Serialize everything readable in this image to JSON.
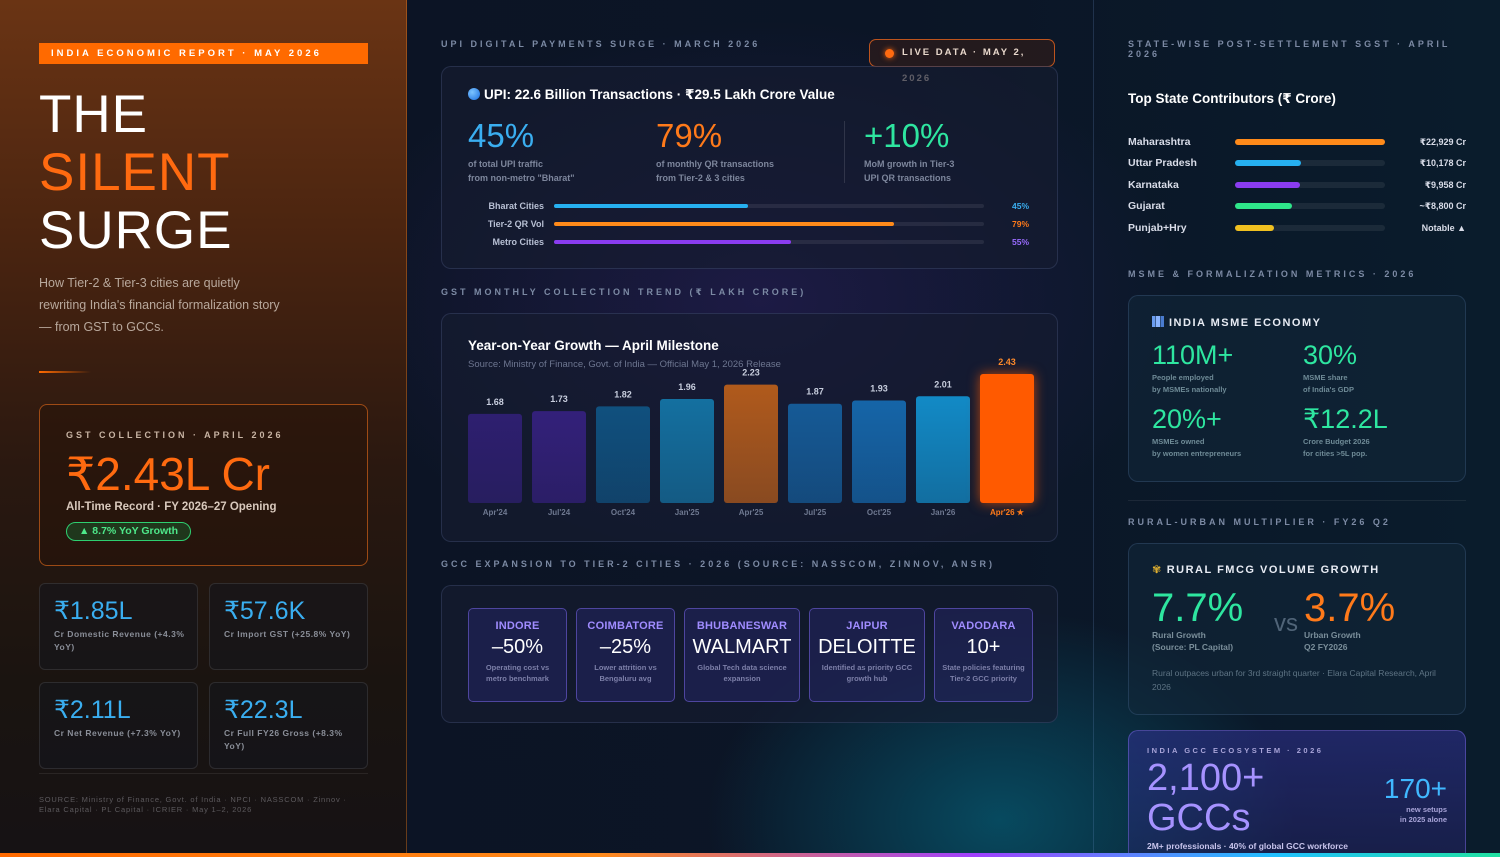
{
  "left": {
    "report_tag": "INDIA ECONOMIC REPORT · MAY 2026",
    "title": [
      "THE",
      "SILENT",
      "SURGE"
    ],
    "subtitle": "How Tier-2 & Tier-3 cities are quietly rewriting India's financial formalization story — from GST to GCCs.",
    "gst_card": {
      "label": "GST COLLECTION · APRIL 2026",
      "value": "₹2.43L Cr",
      "sub": "All-Time Record · FY 2026–27 Opening",
      "pill": "▲ 8.7% YoY Growth"
    },
    "stats": [
      {
        "value": "₹1.85L",
        "desc": "Cr Domestic Revenue (+4.3% YoY)"
      },
      {
        "value": "₹57.6K",
        "desc": "Cr Import GST (+25.8% YoY)"
      },
      {
        "value": "₹2.11L",
        "desc": "Cr Net Revenue (+7.3% YoY)"
      },
      {
        "value": "₹22.3L",
        "desc": "Cr Full FY26 Gross (+8.3% YoY)"
      }
    ],
    "source": "SOURCE: Ministry of Finance, Govt. of India · NPCI · NASSCOM · Zinnov · Elara Capital · PL Capital · ICRIER · May 1–2, 2026"
  },
  "upi": {
    "section_label": "UPI DIGITAL PAYMENTS SURGE · MARCH 2026",
    "live_badge": "LIVE DATA · MAY 2, 2026",
    "title": "UPI: 22.6 Billion Transactions · ₹29.5 Lakh Crore Value",
    "kpis": [
      {
        "value": "45%",
        "desc1": "of total UPI traffic",
        "desc2": "from non-metro \"Bharat\"",
        "color": "#3aaef0"
      },
      {
        "value": "79%",
        "desc1": "of monthly QR transactions",
        "desc2": "from Tier-2 & 3 cities",
        "color": "#ff7a1a"
      },
      {
        "value": "+10%",
        "desc1": "MoM growth in Tier-3",
        "desc2": "UPI QR transactions",
        "color": "#2ee6a0"
      }
    ],
    "bars": [
      {
        "label": "Bharat Cities",
        "pct": "45%",
        "value": 45,
        "color": "#26b0f0",
        "pct_color": "#3aaef0"
      },
      {
        "label": "Tier-2 QR Vol",
        "pct": "79%",
        "value": 79,
        "color": "#ff8a1a",
        "pct_color": "#ff7a1a"
      },
      {
        "label": "Metro Cities",
        "pct": "55%",
        "value": 55,
        "color": "#8a3cf0",
        "pct_color": "#9a6cff"
      }
    ]
  },
  "gst_trend": {
    "section_label": "GST MONTHLY COLLECTION TREND (₹ LAKH CRORE)",
    "title": "Year-on-Year Growth — April Milestone",
    "source": "Source: Ministry of Finance, Govt. of India — Official May 1, 2026 Release"
  },
  "chart_data": {
    "type": "bar",
    "title": "Year-on-Year Growth — April Milestone",
    "categories": [
      "Apr'24",
      "Jul'24",
      "Oct'24",
      "Jan'25",
      "Apr'25",
      "Jul'25",
      "Oct'25",
      "Jan'26",
      "Apr'26 ★"
    ],
    "values": [
      1.68,
      1.73,
      1.82,
      1.96,
      2.23,
      1.87,
      1.93,
      2.01,
      2.43
    ],
    "value_labels": [
      "1.68",
      "1.73",
      "1.82",
      "1.96",
      "2.23",
      "1.87",
      "1.93",
      "2.01",
      "2.43"
    ],
    "colors": [
      "#2e1f70",
      "#33207a",
      "#10507e",
      "#1470a0",
      "#b05a1c",
      "#155a96",
      "#1565a8",
      "#128ac6",
      "#ff5a00"
    ],
    "highlight_index": 8,
    "ylim": [
      0,
      2.43
    ],
    "grid": false,
    "legend": "none"
  },
  "gcc": {
    "section_label": "GCC EXPANSION TO TIER-2 CITIES · 2026 (SOURCE: NASSCOM, ZINNOV, ANSR)",
    "cards": [
      {
        "city": "INDORE",
        "value": "–50%",
        "desc": "Operating cost vs metro benchmark"
      },
      {
        "city": "COIMBATORE",
        "value": "–25%",
        "desc": "Lower attrition vs Bengaluru avg"
      },
      {
        "city": "BHUBANESWAR",
        "value": "WALMART",
        "desc": "Global Tech data science expansion"
      },
      {
        "city": "JAIPUR",
        "value": "DELOITTE",
        "desc": "Identified as priority GCC growth hub"
      },
      {
        "city": "VADODARA",
        "value": "10+",
        "desc": "State policies featuring Tier-2 GCC priority"
      }
    ]
  },
  "right": {
    "state_label": "STATE-WISE POST-SETTLEMENT SGST · APRIL 2026",
    "state_title": "Top State Contributors (₹ Crore)",
    "states": [
      {
        "name": "Maharashtra",
        "value": "₹22,929 Cr",
        "fill": 1.0,
        "color": "#ff8a1a"
      },
      {
        "name": "Uttar Pradesh",
        "value": "₹10,178 Cr",
        "fill": 0.44,
        "color": "#26b0f0"
      },
      {
        "name": "Karnataka",
        "value": "₹9,958 Cr",
        "fill": 0.43,
        "color": "#8a3cf0"
      },
      {
        "name": "Gujarat",
        "value": "~₹8,800 Cr",
        "fill": 0.38,
        "color": "#2ee68a"
      },
      {
        "name": "Punjab+Hry",
        "value": "Notable ▲",
        "fill": 0.26,
        "color": "#f0c020"
      }
    ],
    "msme_label": "MSME & FORMALIZATION METRICS · 2026",
    "msme": {
      "head": "INDIA MSME ECONOMY",
      "kpis": [
        {
          "value": "110M+",
          "desc1": "People employed",
          "desc2": "by MSMEs nationally"
        },
        {
          "value": "30%",
          "desc1": "MSME share",
          "desc2": "of India's GDP"
        },
        {
          "value": "20%+",
          "desc1": "MSMEs owned",
          "desc2": "by women entrepreneurs"
        },
        {
          "value": "₹12.2L",
          "desc1": "Crore Budget 2026",
          "desc2": "for cities >5L pop."
        }
      ]
    },
    "rural_label": "RURAL-URBAN MULTIPLIER · FY26 Q2",
    "fmcg": {
      "head": "RURAL FMCG VOLUME GROWTH",
      "rural_value": "7.7%",
      "rural_desc1": "Rural Growth",
      "rural_desc2": "(Source: PL Capital)",
      "vs": "vs",
      "urban_value": "3.7%",
      "urban_desc1": "Urban Growth",
      "urban_desc2": "Q2 FY2026",
      "note": "Rural outpaces urban for 3rd straight quarter · Elara Capital Research, April 2026"
    },
    "gcc_eco": {
      "label": "INDIA GCC ECOSYSTEM · 2026",
      "big1": "2,100+",
      "big2": "GCCs",
      "side_value": "170+",
      "side_desc1": "new setups",
      "side_desc2": "in 2025 alone",
      "foot": "2M+ professionals · 40% of global GCC workforce"
    }
  }
}
